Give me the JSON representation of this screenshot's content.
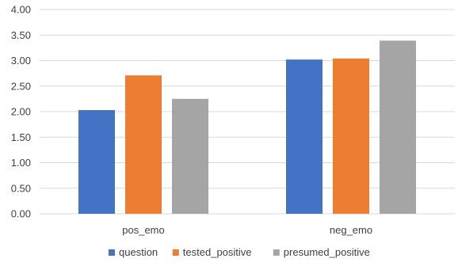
{
  "chart_data": {
    "type": "bar",
    "title": "",
    "xlabel": "",
    "ylabel": "",
    "categories": [
      "pos_emo",
      "neg_emo"
    ],
    "series": [
      {
        "name": "question",
        "values": [
          2.03,
          3.02
        ],
        "color": "#4472c4"
      },
      {
        "name": "tested_positive",
        "values": [
          2.71,
          3.04
        ],
        "color": "#ed7d31"
      },
      {
        "name": "presumed_positive",
        "values": [
          2.25,
          3.39
        ],
        "color": "#a5a5a5"
      }
    ],
    "ylim": [
      0,
      4
    ],
    "yticks": [
      "0.00",
      "0.50",
      "1.00",
      "1.50",
      "2.00",
      "2.50",
      "3.00",
      "3.50",
      "4.00"
    ],
    "grid": true,
    "legend_position": "bottom"
  }
}
